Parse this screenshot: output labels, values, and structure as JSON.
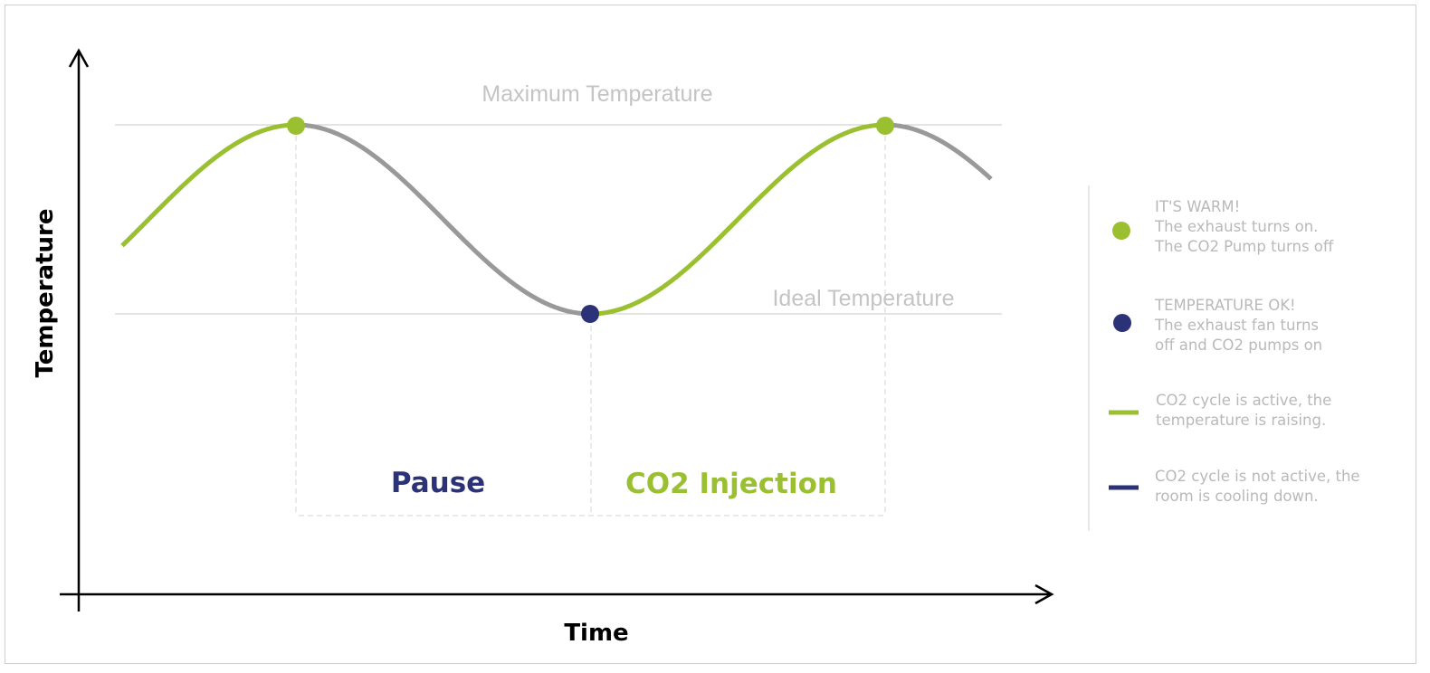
{
  "diagram": {
    "y_axis_label": "Temperature",
    "x_axis_label": "Time",
    "max_line_label": "Maximum Temperature",
    "ideal_line_label": "Ideal Temperature",
    "phase_pause": "Pause",
    "phase_injection": "CO2 Injection"
  },
  "legend": {
    "items": [
      {
        "symbol": "dot",
        "color": "#9ac031",
        "text": "IT'S WARM!\nThe exhaust turns on.\nThe CO2 Pump turns off"
      },
      {
        "symbol": "dot",
        "color": "#2b3278",
        "text": "TEMPERATURE OK!\nThe exhaust fan turns\noff and CO2 pumps on"
      },
      {
        "symbol": "line",
        "color": "#9ac031",
        "text": "CO2 cycle is active, the\ntemperature is raising."
      },
      {
        "symbol": "line",
        "color": "#2b3278",
        "text": "CO2 cycle is not active, the\nroom is cooling down."
      }
    ]
  },
  "colors": {
    "active": "#9ac031",
    "inactive": "#2b3278",
    "curve_cooling": "#999999",
    "guide": "#c8c8c8",
    "label": "#b9b9b9"
  }
}
